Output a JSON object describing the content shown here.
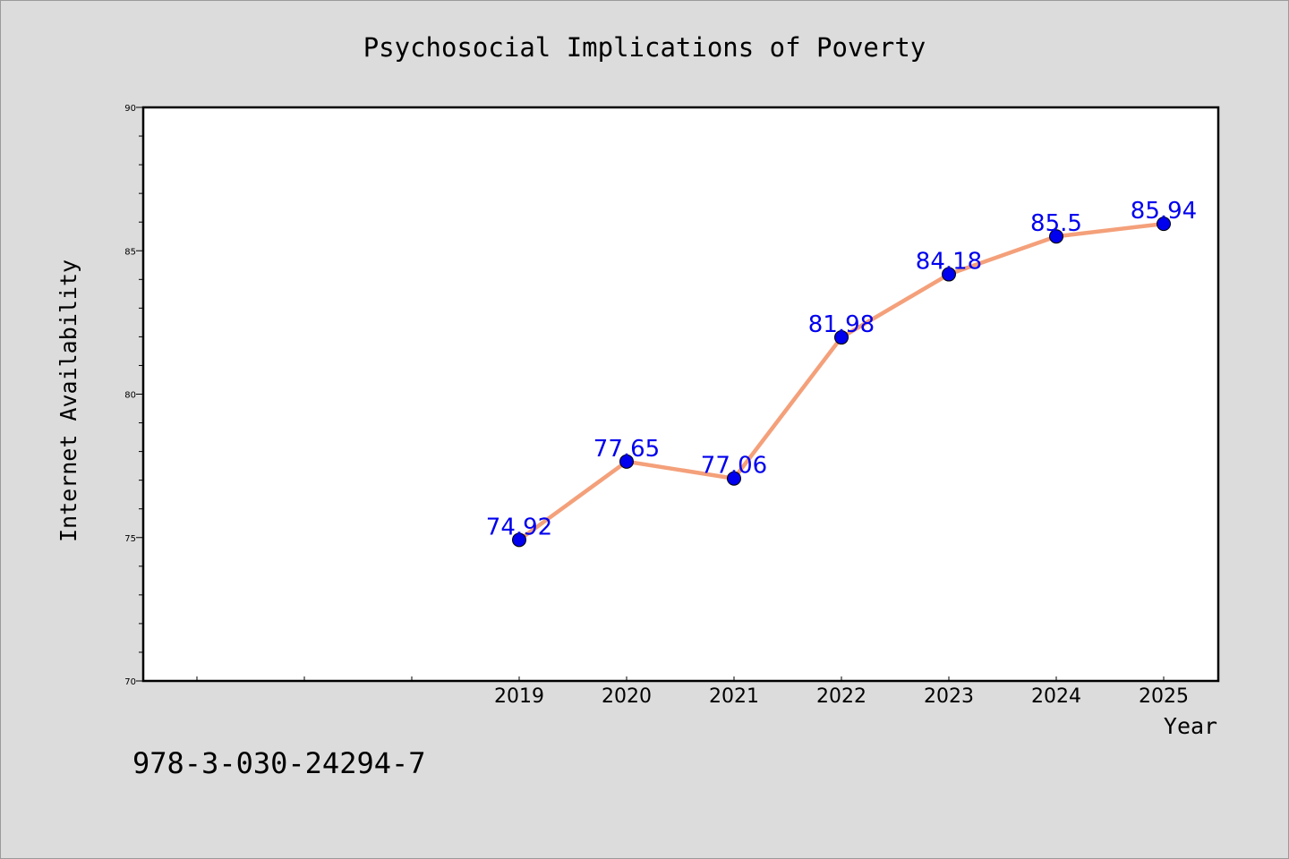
{
  "chart_data": {
    "type": "line",
    "title": "Psychosocial Implications of Poverty",
    "xlabel": "Year",
    "ylabel": "Internet Availability",
    "x": [
      "2019",
      "2020",
      "2021",
      "2022",
      "2023",
      "2024",
      "2025"
    ],
    "series": [
      {
        "values": [
          74.92,
          77.65,
          77.06,
          81.98,
          84.18,
          85.5,
          85.94
        ],
        "data_labels": [
          "74.92",
          "77.65",
          "77.06",
          "81.98",
          "84.18",
          "85.5",
          "85.94"
        ],
        "line_color": "#f4a07a",
        "marker_color": "#0000ee",
        "label_color": "#0000ee"
      }
    ],
    "ylim": [
      70,
      90
    ],
    "yticks": [
      "70",
      "75",
      "80",
      "85",
      "90"
    ],
    "grid": false,
    "legend": "none"
  },
  "footer": {
    "isbn": "978-3-030-24294-7"
  },
  "colors": {
    "background": "#dcdcdc",
    "plot_area": "#ffffff"
  }
}
